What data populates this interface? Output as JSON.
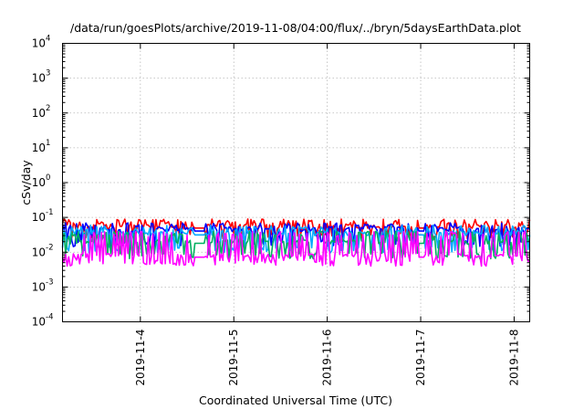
{
  "chart_data": {
    "type": "line",
    "title": "/data/run/goesPlots/archive/2019-11-08/04:00/flux/../bryn/5daysEarthData.plot",
    "xlabel": "Coordinated Universal Time (UTC)",
    "ylabel": "cSv/day",
    "yscale": "log",
    "ylim": [
      0.0001,
      10000
    ],
    "y_ticks": [
      {
        "base": "10",
        "exp": "-4",
        "value": 0.0001
      },
      {
        "base": "10",
        "exp": "-3",
        "value": 0.001
      },
      {
        "base": "10",
        "exp": "-2",
        "value": 0.01
      },
      {
        "base": "10",
        "exp": "-1",
        "value": 0.1
      },
      {
        "base": "10",
        "exp": "0",
        "value": 1
      },
      {
        "base": "10",
        "exp": "1",
        "value": 10
      },
      {
        "base": "10",
        "exp": "2",
        "value": 100
      },
      {
        "base": "10",
        "exp": "3",
        "value": 1000
      },
      {
        "base": "10",
        "exp": "4",
        "value": 10000
      }
    ],
    "xlim": [
      "2019-11-03T04:00",
      "2019-11-08T04:00"
    ],
    "x_ticks": [
      "2019-11-4",
      "2019-11-5",
      "2019-11-6",
      "2019-11-7",
      "2019-11-8"
    ],
    "grid": true,
    "legend": "none",
    "series": [
      {
        "color": "#ff0000",
        "baseline": 0.055,
        "spike_high": 0.09,
        "dip_low": 0.03
      },
      {
        "color": "#0000ff",
        "baseline": 0.045,
        "spike_high": 0.07,
        "dip_low": 0.018
      },
      {
        "color": "#00aaff",
        "baseline": 0.035,
        "spike_high": 0.06,
        "dip_low": 0.012
      },
      {
        "color": "#00b060",
        "baseline": 0.02,
        "spike_high": 0.04,
        "dip_low": 0.008
      },
      {
        "color": "#ff00ff",
        "baseline": 0.008,
        "spike_high": 0.04,
        "dip_low": 0.005
      }
    ]
  }
}
